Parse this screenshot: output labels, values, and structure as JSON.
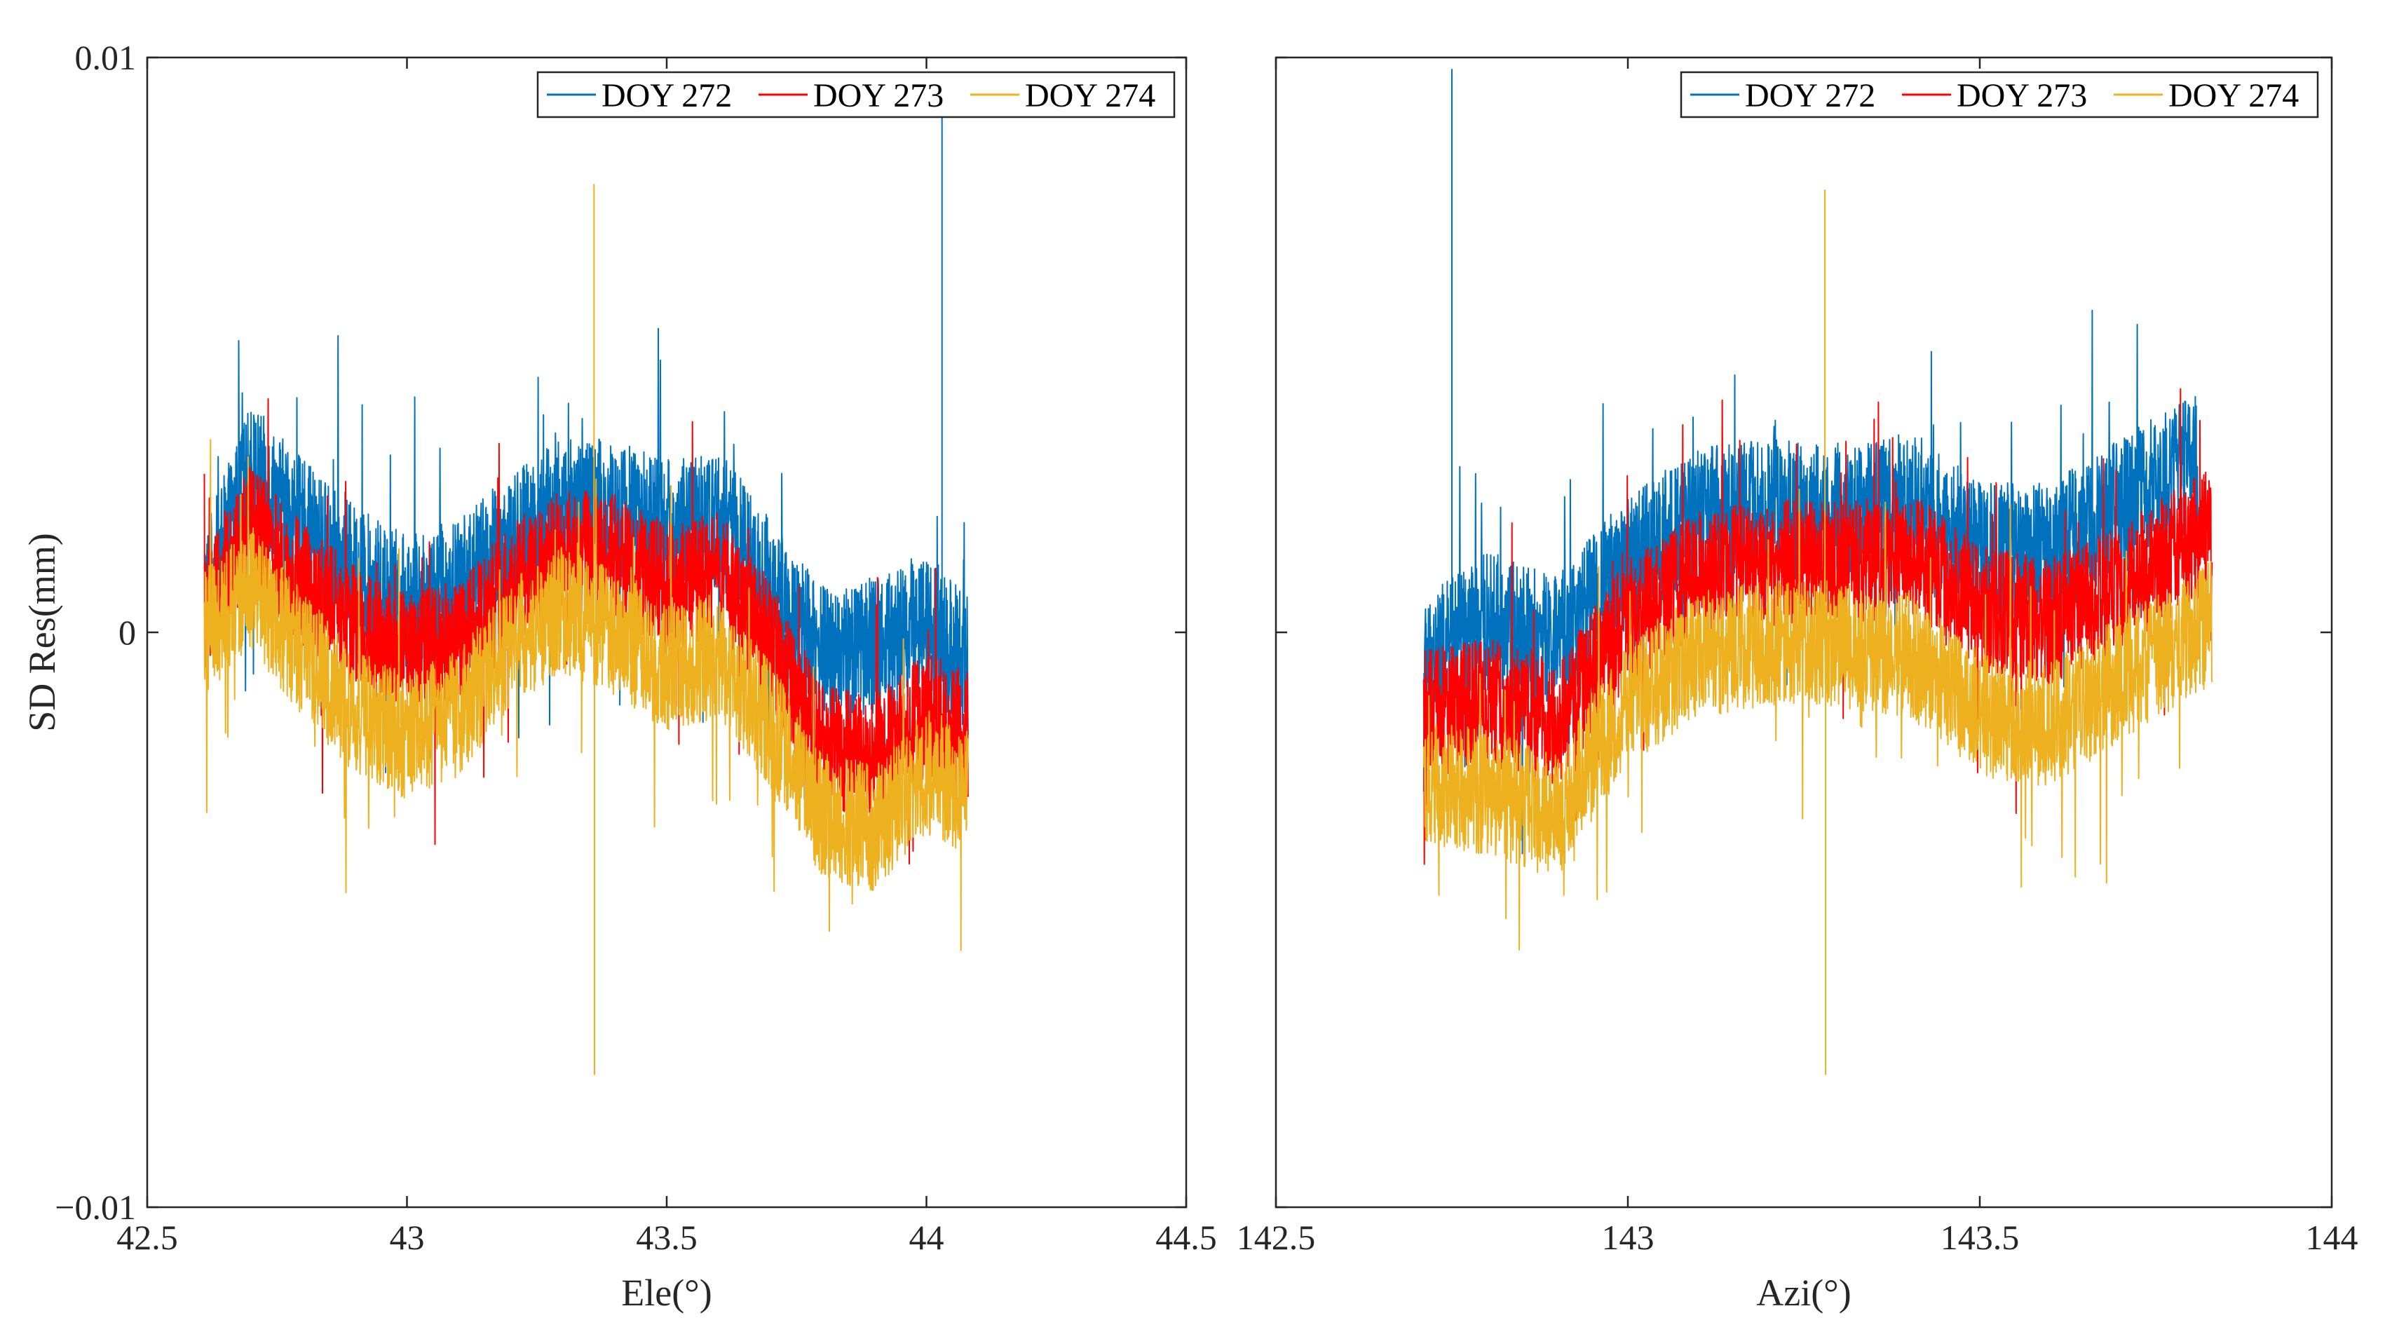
{
  "chart_data": [
    {
      "type": "line",
      "panel": "left",
      "xlabel": "Ele(°)",
      "ylabel": "SD Res(mm)",
      "xlim": [
        42.5,
        44.5
      ],
      "ylim": [
        -0.01,
        0.01
      ],
      "xticks": [
        42.5,
        43,
        43.5,
        44,
        44.5
      ],
      "xtick_labels": [
        "42.5",
        "43",
        "43.5",
        "44",
        "44.5"
      ],
      "yticks": [
        -0.01,
        0,
        0.01
      ],
      "ytick_labels": [
        "−0.01",
        "0",
        "0.01"
      ],
      "legend": [
        "DOY 272",
        "DOY 273",
        "DOY 274"
      ],
      "legend_location": "top-right",
      "series": [
        {
          "name": "DOY 272",
          "color": "#0072BD",
          "x_range": [
            42.61,
            44.08
          ],
          "profile_x": [
            42.61,
            42.7,
            42.8,
            42.9,
            43.0,
            43.1,
            43.2,
            43.3,
            43.4,
            43.5,
            43.6,
            43.7,
            43.8,
            43.9,
            44.0,
            44.08
          ],
          "profile_y": [
            0.0006,
            0.0028,
            0.0018,
            0.001,
            0.0005,
            0.0008,
            0.0016,
            0.0022,
            0.0022,
            0.0018,
            0.002,
            0.0008,
            -0.0004,
            -0.0002,
            0.0002,
            -0.0006
          ],
          "noise": 0.0012,
          "spikes": [
            {
              "x": 44.03,
              "y": 0.0095
            }
          ]
        },
        {
          "name": "DOY 273",
          "color": "#FF0000",
          "x_range": [
            42.61,
            44.08
          ],
          "profile_x": [
            42.61,
            42.7,
            42.8,
            42.9,
            43.0,
            43.1,
            43.2,
            43.3,
            43.4,
            43.5,
            43.6,
            43.7,
            43.8,
            43.9,
            44.0,
            44.08
          ],
          "profile_y": [
            0.0004,
            0.0018,
            0.0008,
            0.0001,
            -0.0004,
            -0.0002,
            0.0008,
            0.0014,
            0.0013,
            0.0008,
            0.001,
            -0.0002,
            -0.002,
            -0.0022,
            -0.0014,
            -0.0018
          ],
          "noise": 0.0011,
          "spikes": []
        },
        {
          "name": "DOY 274",
          "color": "#EDB120",
          "x_range": [
            42.61,
            44.08
          ],
          "profile_x": [
            42.61,
            42.7,
            42.8,
            42.9,
            43.0,
            43.1,
            43.2,
            43.3,
            43.4,
            43.5,
            43.6,
            43.7,
            43.8,
            43.9,
            44.0,
            44.08
          ],
          "profile_y": [
            0.0,
            0.0008,
            -0.0004,
            -0.0014,
            -0.0018,
            -0.0014,
            -0.0002,
            0.0004,
            0.0,
            -0.0006,
            -0.0004,
            -0.0016,
            -0.0032,
            -0.0034,
            -0.0024,
            -0.0028
          ],
          "noise": 0.0011,
          "spikes": [
            {
              "x": 43.36,
              "y": 0.0078
            },
            {
              "x": 43.361,
              "y": -0.0077
            }
          ]
        }
      ]
    },
    {
      "type": "line",
      "panel": "right",
      "xlabel": "Azi(°)",
      "ylabel": "",
      "xlim": [
        142.5,
        144
      ],
      "ylim": [
        -0.01,
        0.01
      ],
      "xticks": [
        142.5,
        143,
        143.5,
        144
      ],
      "xtick_labels": [
        "142.5",
        "143",
        "143.5",
        "144"
      ],
      "yticks": [
        -0.01,
        0,
        0.01
      ],
      "ytick_labels": [],
      "legend": [
        "DOY 272",
        "DOY 273",
        "DOY 274"
      ],
      "legend_location": "top-right",
      "series": [
        {
          "name": "DOY 272",
          "color": "#0072BD",
          "x_range": [
            142.71,
            143.81
          ],
          "profile_x": [
            142.71,
            142.8,
            142.9,
            143.0,
            143.1,
            143.2,
            143.3,
            143.4,
            143.5,
            143.6,
            143.7,
            143.81
          ],
          "profile_y": [
            -0.0006,
            0.0002,
            -0.0002,
            0.0012,
            0.002,
            0.0022,
            0.002,
            0.0024,
            0.0014,
            0.0014,
            0.0022,
            0.003
          ],
          "noise": 0.0012,
          "spikes": [
            {
              "x": 142.75,
              "y": 0.0098
            }
          ]
        },
        {
          "name": "DOY 273",
          "color": "#FF0000",
          "x_range": [
            142.71,
            143.83
          ],
          "profile_x": [
            142.71,
            142.8,
            142.9,
            143.0,
            143.1,
            143.2,
            143.3,
            143.4,
            143.5,
            143.6,
            143.7,
            143.83
          ],
          "profile_y": [
            -0.0014,
            -0.0012,
            -0.0016,
            0.0002,
            0.001,
            0.0012,
            0.0012,
            0.0014,
            0.0004,
            0.0002,
            0.0008,
            0.0018
          ],
          "noise": 0.0011,
          "spikes": []
        },
        {
          "name": "DOY 274",
          "color": "#EDB120",
          "x_range": [
            142.71,
            143.83
          ],
          "profile_x": [
            142.71,
            142.8,
            142.9,
            143.0,
            143.1,
            143.2,
            143.3,
            143.4,
            143.5,
            143.6,
            143.7,
            143.83
          ],
          "profile_y": [
            -0.0026,
            -0.0028,
            -0.0032,
            -0.0012,
            -0.0004,
            -0.0002,
            -0.0002,
            -0.0004,
            -0.0014,
            -0.0016,
            -0.0008,
            0.0002
          ],
          "noise": 0.0011,
          "spikes": [
            {
              "x": 143.28,
              "y": 0.0077
            },
            {
              "x": 143.281,
              "y": -0.0077
            }
          ]
        }
      ]
    }
  ]
}
